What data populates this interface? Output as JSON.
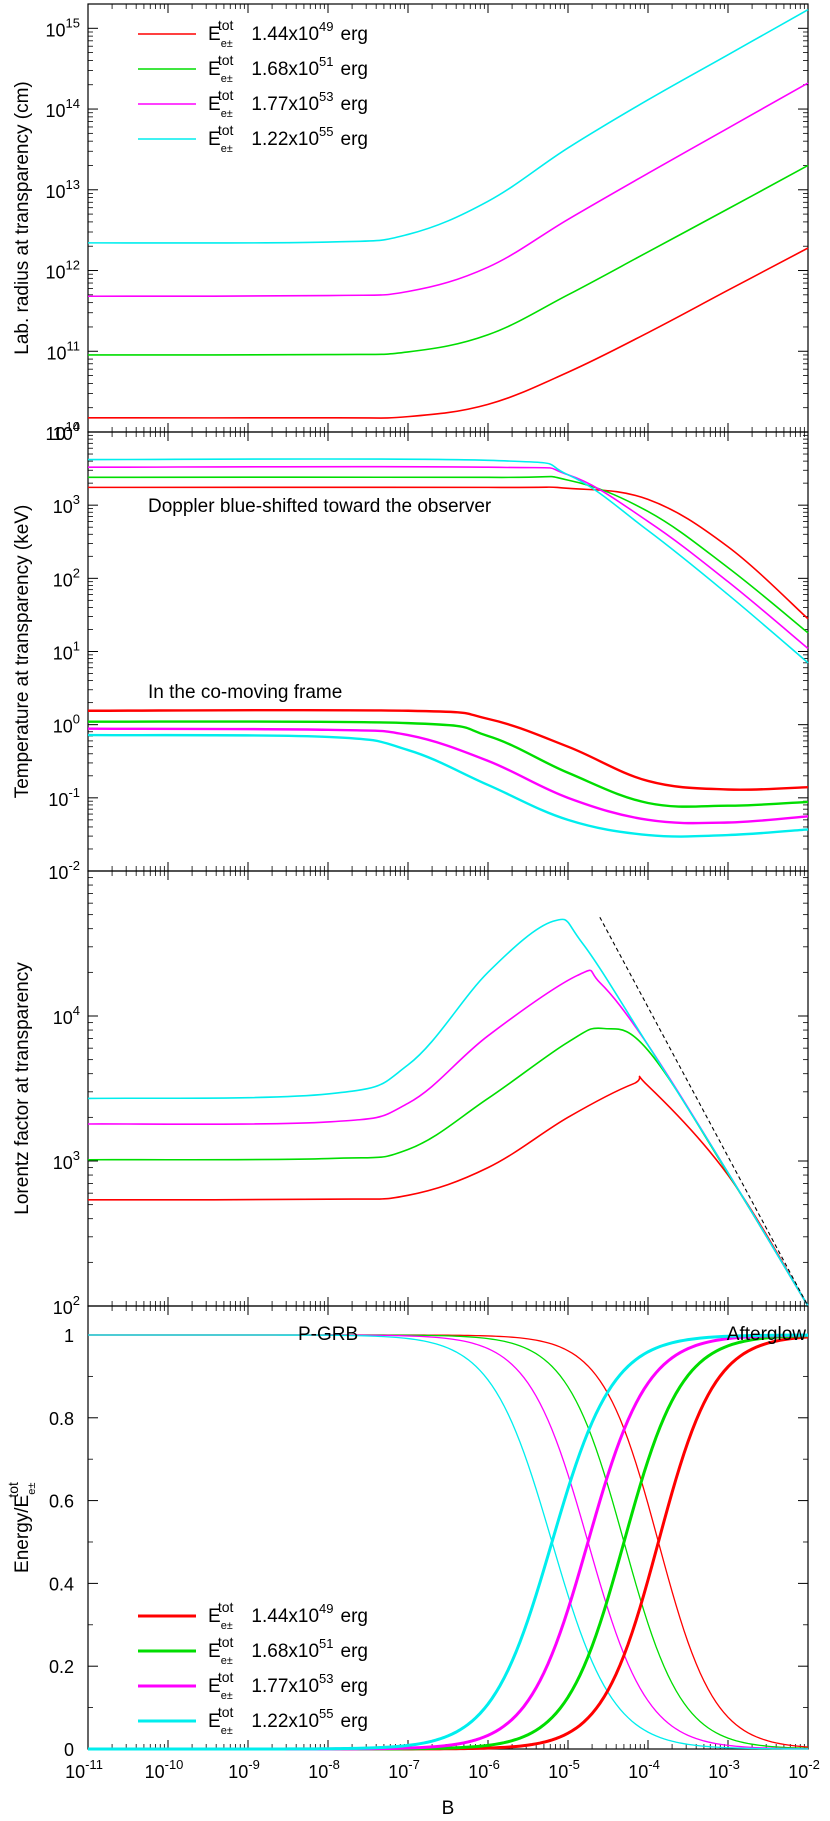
{
  "colors": {
    "red": "#ff0000",
    "green": "#00dd00",
    "magenta": "#ff00ff",
    "cyan": "#00eeee"
  },
  "xaxis": {
    "label": "B",
    "ticks": [
      -11,
      -10,
      -9,
      -8,
      -7,
      -6,
      -5,
      -4,
      -3,
      -2
    ],
    "tick_base": "10",
    "scale": "log"
  },
  "legend": {
    "symbol_base": "E",
    "symbol_sub": "e±",
    "symbol_sup": "tot",
    "entries": [
      {
        "mantissa": "1.44x10",
        "exp": "49",
        "unit": "erg",
        "color": "#ff0000"
      },
      {
        "mantissa": "1.68x10",
        "exp": "51",
        "unit": "erg",
        "color": "#00dd00"
      },
      {
        "mantissa": "1.77x10",
        "exp": "53",
        "unit": "erg",
        "color": "#ff00ff"
      },
      {
        "mantissa": "1.22x10",
        "exp": "55",
        "unit": "erg",
        "color": "#00eeee"
      }
    ]
  },
  "chart_data": [
    {
      "type": "line",
      "ylabel": "Lab. radius at transparency (cm)",
      "xscale": "log",
      "yscale": "log",
      "xlim": [
        1e-11,
        0.01
      ],
      "ylim": [
        10000000000.0,
        2000000000000000.0
      ],
      "ytick_exponents": [
        10,
        11,
        12,
        13,
        14,
        15
      ],
      "legend_position": "top-left",
      "series": [
        {
          "color": "#ff0000",
          "points": [
            [
              1e-11,
              15000000000.0
            ],
            [
              1e-08,
              15000000000.0
            ],
            [
              1e-07,
              15500000000.0
            ],
            [
              1e-06,
              22000000000.0
            ],
            [
              1e-05,
              55000000000.0
            ],
            [
              0.0001,
              170000000000.0
            ],
            [
              0.001,
              570000000000.0
            ],
            [
              0.01,
              1900000000000.0
            ]
          ]
        },
        {
          "color": "#00dd00",
          "points": [
            [
              1e-11,
              90000000000.0
            ],
            [
              1e-08,
              91000000000.0
            ],
            [
              1e-07,
              98000000000.0
            ],
            [
              1e-06,
              160000000000.0
            ],
            [
              1e-05,
              500000000000.0
            ],
            [
              0.0001,
              1700000000000.0
            ],
            [
              0.001,
              5800000000000.0
            ],
            [
              0.01,
              20000000000000.0
            ]
          ]
        },
        {
          "color": "#ff00ff",
          "points": [
            [
              1e-11,
              480000000000.0
            ],
            [
              1e-08,
              490000000000.0
            ],
            [
              1e-07,
              550000000000.0
            ],
            [
              1e-06,
              1100000000000.0
            ],
            [
              1e-05,
              4300000000000.0
            ],
            [
              0.0001,
              16000000000000.0
            ],
            [
              0.001,
              58000000000000.0
            ],
            [
              0.01,
              210000000000000.0
            ]
          ]
        },
        {
          "color": "#00eeee",
          "points": [
            [
              1e-11,
              2200000000000.0
            ],
            [
              1e-08,
              2250000000000.0
            ],
            [
              1e-07,
              2800000000000.0
            ],
            [
              1e-06,
              7200000000000.0
            ],
            [
              1e-05,
              33000000000000.0
            ],
            [
              0.0001,
              130000000000000.0
            ],
            [
              0.001,
              470000000000000.0
            ],
            [
              0.01,
              1700000000000000.0
            ]
          ]
        }
      ]
    },
    {
      "type": "line",
      "ylabel": "Temperature at transparency (keV)",
      "xscale": "log",
      "yscale": "log",
      "xlim": [
        1e-11,
        0.01
      ],
      "ylim": [
        0.01,
        10000.0
      ],
      "ytick_exponents": [
        -2,
        -1,
        0,
        1,
        2,
        3,
        4
      ],
      "annotations": [
        "Doppler blue-shifted toward the observer",
        "In the co-moving frame"
      ],
      "series": [
        {
          "color": "#ff0000",
          "group": "observer",
          "points": [
            [
              1e-11,
              1750
            ],
            [
              1e-06,
              1750
            ],
            [
              1e-05,
              1700
            ],
            [
              0.0001,
              1200
            ],
            [
              0.001,
              270
            ],
            [
              0.01,
              28
            ]
          ]
        },
        {
          "color": "#00dd00",
          "group": "observer",
          "points": [
            [
              1e-11,
              2400
            ],
            [
              1e-06,
              2400
            ],
            [
              1e-05,
              2200
            ],
            [
              0.0001,
              820
            ],
            [
              0.001,
              140
            ],
            [
              0.01,
              18
            ]
          ]
        },
        {
          "color": "#ff00ff",
          "group": "observer",
          "points": [
            [
              1e-11,
              3300
            ],
            [
              1e-06,
              3300
            ],
            [
              1e-05,
              2600
            ],
            [
              0.0001,
              600
            ],
            [
              0.001,
              90
            ],
            [
              0.01,
              11
            ]
          ]
        },
        {
          "color": "#00eeee",
          "group": "observer",
          "points": [
            [
              1e-11,
              4200
            ],
            [
              1e-06,
              4100
            ],
            [
              1e-05,
              2600
            ],
            [
              0.0001,
              450
            ],
            [
              0.001,
              60
            ],
            [
              0.01,
              7
            ]
          ]
        },
        {
          "color": "#ff0000",
          "group": "comoving",
          "points": [
            [
              1e-11,
              1.55
            ],
            [
              1e-07,
              1.55
            ],
            [
              1e-06,
              1.2
            ],
            [
              1e-05,
              0.5
            ],
            [
              0.0001,
              0.17
            ],
            [
              0.001,
              0.13
            ],
            [
              0.01,
              0.14
            ]
          ]
        },
        {
          "color": "#00dd00",
          "group": "comoving",
          "points": [
            [
              1e-11,
              1.1
            ],
            [
              1e-07,
              1.05
            ],
            [
              1e-06,
              0.7
            ],
            [
              1e-05,
              0.22
            ],
            [
              0.0001,
              0.085
            ],
            [
              0.001,
              0.078
            ],
            [
              0.01,
              0.088
            ]
          ]
        },
        {
          "color": "#ff00ff",
          "group": "comoving",
          "points": [
            [
              1e-11,
              0.88
            ],
            [
              1e-08,
              0.85
            ],
            [
              1e-07,
              0.72
            ],
            [
              1e-06,
              0.32
            ],
            [
              1e-05,
              0.1
            ],
            [
              0.0001,
              0.05
            ],
            [
              0.001,
              0.046
            ],
            [
              0.01,
              0.056
            ]
          ]
        },
        {
          "color": "#00eeee",
          "group": "comoving",
          "points": [
            [
              1e-11,
              0.72
            ],
            [
              1e-08,
              0.68
            ],
            [
              1e-07,
              0.45
            ],
            [
              1e-06,
              0.15
            ],
            [
              1e-05,
              0.05
            ],
            [
              0.0001,
              0.031
            ],
            [
              0.001,
              0.031
            ],
            [
              0.01,
              0.037
            ]
          ]
        }
      ]
    },
    {
      "type": "line",
      "ylabel": "Lorentz  factor at transparency",
      "xscale": "log",
      "yscale": "log",
      "xlim": [
        1e-11,
        0.01
      ],
      "ylim": [
        100,
        100000.0
      ],
      "ytick_exponents": [
        2,
        3,
        4
      ],
      "series": [
        {
          "color": "#ff0000",
          "points": [
            [
              1e-11,
              540
            ],
            [
              1e-08,
              545
            ],
            [
              1e-07,
              580
            ],
            [
              1e-06,
              900
            ],
            [
              1e-05,
              2000
            ],
            [
              6.5e-05,
              3400
            ],
            [
              0.0001,
              3300
            ],
            [
              0.001,
              800
            ],
            [
              0.01,
              100
            ]
          ]
        },
        {
          "color": "#00dd00",
          "points": [
            [
              1e-11,
              1020
            ],
            [
              1e-08,
              1040
            ],
            [
              1e-07,
              1200
            ],
            [
              1e-06,
              2700
            ],
            [
              1e-05,
              6600
            ],
            [
              2.8e-05,
              8200
            ],
            [
              0.0001,
              5800
            ],
            [
              0.001,
              820
            ],
            [
              0.01,
              100
            ]
          ]
        },
        {
          "color": "#ff00ff",
          "points": [
            [
              1e-11,
              1800
            ],
            [
              1e-08,
              1860
            ],
            [
              1e-07,
              2500
            ],
            [
              1e-06,
              7300
            ],
            [
              1.3e-05,
              19000
            ],
            [
              2.5e-05,
              17000
            ],
            [
              0.0001,
              6300
            ],
            [
              0.001,
              830
            ],
            [
              0.01,
              100
            ]
          ]
        },
        {
          "color": "#00eeee",
          "points": [
            [
              1e-11,
              2700
            ],
            [
              1e-08,
              2900
            ],
            [
              1e-07,
              4600
            ],
            [
              1e-06,
              20000
            ],
            [
              6.5e-06,
              45000
            ],
            [
              1.5e-05,
              32000
            ],
            [
              0.0001,
              6300
            ],
            [
              0.001,
              830
            ],
            [
              0.01,
              100
            ]
          ]
        },
        {
          "color": "#000000",
          "dashed": true,
          "points": [
            [
              2.5e-05,
              48000
            ],
            [
              0.01,
              100
            ]
          ]
        }
      ]
    },
    {
      "type": "line",
      "ylabel_prefix": "Energy/",
      "xscale": "log",
      "yscale": "linear",
      "xlim": [
        1e-11,
        0.01
      ],
      "ylim": [
        0,
        1.07
      ],
      "yticks": [
        "0",
        "0.2",
        "0.4",
        "0.6",
        "0.8",
        "1"
      ],
      "annotations": [
        "P-GRB",
        "Afterglow"
      ],
      "legend_position": "bottom-left",
      "series": [
        {
          "color": "#ff0000",
          "kind": "pgrb",
          "logmid": -3.87,
          "width": 0.35
        },
        {
          "color": "#00dd00",
          "kind": "pgrb",
          "logmid": -4.3,
          "width": 0.36
        },
        {
          "color": "#ff00ff",
          "kind": "pgrb",
          "logmid": -4.75,
          "width": 0.37
        },
        {
          "color": "#00eeee",
          "kind": "pgrb",
          "logmid": -5.2,
          "width": 0.38
        },
        {
          "color": "#ff0000",
          "kind": "afterglow",
          "logmid": -3.87,
          "width": 0.35
        },
        {
          "color": "#00dd00",
          "kind": "afterglow",
          "logmid": -4.3,
          "width": 0.36
        },
        {
          "color": "#ff00ff",
          "kind": "afterglow",
          "logmid": -4.75,
          "width": 0.37
        },
        {
          "color": "#00eeee",
          "kind": "afterglow",
          "logmid": -5.2,
          "width": 0.38
        }
      ]
    }
  ]
}
